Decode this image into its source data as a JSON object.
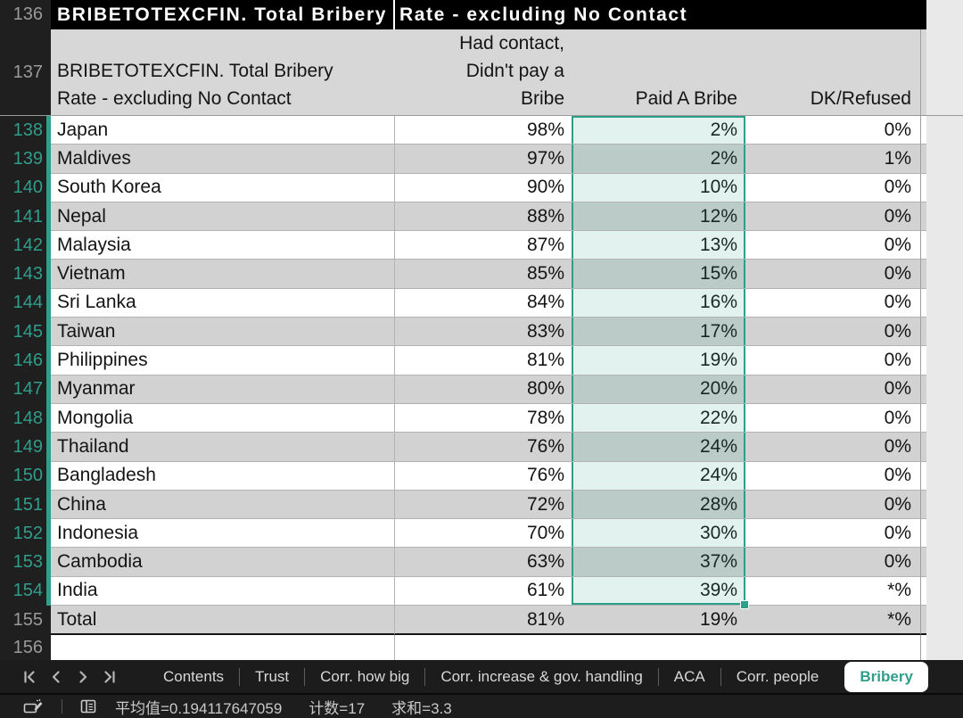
{
  "colors": {
    "accent_teal": "#2f9e8a",
    "header_bg": "#000000",
    "alt_row": "#d2d2d2",
    "chrome_bg": "#1c1c1c"
  },
  "table": {
    "title": {
      "row_number": "136",
      "left": "BRIBETOTEXCFIN. Total Bribery",
      "right": "Rate - excluding No Contact"
    },
    "subheader": {
      "row_number": "137",
      "name_line1": "BRIBETOTEXCFIN. Total Bribery",
      "name_line2": "Rate - excluding No Contact",
      "col_b_line1": "Had contact,",
      "col_b_line2": "Didn't pay a",
      "col_b_line3": "Bribe",
      "col_c": "Paid A Bribe",
      "col_d": "DK/Refused"
    },
    "selection": {
      "first_row": "138",
      "last_row": "154",
      "column": "Paid A Bribe"
    },
    "rows": [
      {
        "row": "138",
        "name": "Japan",
        "b": "98%",
        "c": "2%",
        "d": "0%"
      },
      {
        "row": "139",
        "name": "Maldives",
        "b": "97%",
        "c": "2%",
        "d": "1%"
      },
      {
        "row": "140",
        "name": "South Korea",
        "b": "90%",
        "c": "10%",
        "d": "0%"
      },
      {
        "row": "141",
        "name": "Nepal",
        "b": "88%",
        "c": "12%",
        "d": "0%"
      },
      {
        "row": "142",
        "name": "Malaysia",
        "b": "87%",
        "c": "13%",
        "d": "0%"
      },
      {
        "row": "143",
        "name": "Vietnam",
        "b": "85%",
        "c": "15%",
        "d": "0%"
      },
      {
        "row": "144",
        "name": "Sri Lanka",
        "b": "84%",
        "c": "16%",
        "d": "0%"
      },
      {
        "row": "145",
        "name": "Taiwan",
        "b": "83%",
        "c": "17%",
        "d": "0%"
      },
      {
        "row": "146",
        "name": "Philippines",
        "b": "81%",
        "c": "19%",
        "d": "0%"
      },
      {
        "row": "147",
        "name": "Myanmar",
        "b": "80%",
        "c": "20%",
        "d": "0%"
      },
      {
        "row": "148",
        "name": "Mongolia",
        "b": "78%",
        "c": "22%",
        "d": "0%"
      },
      {
        "row": "149",
        "name": "Thailand",
        "b": "76%",
        "c": "24%",
        "d": "0%"
      },
      {
        "row": "150",
        "name": "Bangladesh",
        "b": "76%",
        "c": "24%",
        "d": "0%"
      },
      {
        "row": "151",
        "name": "China",
        "b": "72%",
        "c": "28%",
        "d": "0%"
      },
      {
        "row": "152",
        "name": "Indonesia",
        "b": "70%",
        "c": "30%",
        "d": "0%"
      },
      {
        "row": "153",
        "name": "Cambodia",
        "b": "63%",
        "c": "37%",
        "d": "0%"
      },
      {
        "row": "154",
        "name": "India",
        "b": "61%",
        "c": "39%",
        "d": "*%"
      },
      {
        "row": "155",
        "name": "Total",
        "b": "81%",
        "c": "19%",
        "d": "*%",
        "is_total": true
      }
    ],
    "empty_row_number": "156"
  },
  "tabs": {
    "items": [
      "Contents",
      "Trust",
      "Corr. how big",
      "Corr. increase & gov. handling",
      "ACA",
      "Corr. people",
      "Bribery"
    ],
    "active": "Bribery"
  },
  "status": {
    "average": "平均值=0.194117647059",
    "count": "计数=17",
    "sum": "求和=3.3"
  }
}
